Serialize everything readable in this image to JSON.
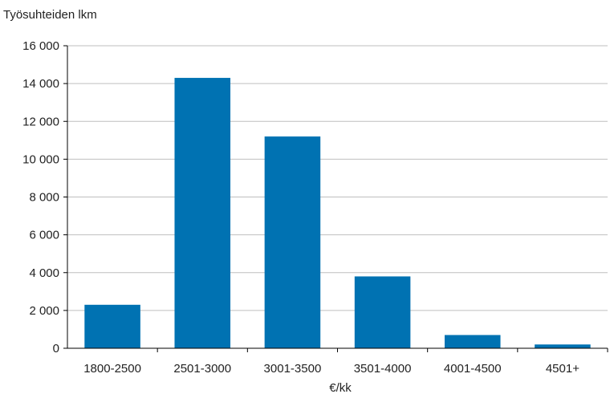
{
  "chart_data": {
    "type": "bar",
    "title": "",
    "ylabel": "Työsuhteiden lkm",
    "xlabel": "€/kk",
    "categories": [
      "1800-2500",
      "2501-3000",
      "3001-3500",
      "3501-4000",
      "4001-4500",
      "4501+"
    ],
    "values": [
      2300,
      14300,
      11200,
      3800,
      700,
      200
    ],
    "ylim": [
      0,
      16000
    ],
    "yticks": [
      0,
      2000,
      4000,
      6000,
      8000,
      10000,
      12000,
      14000,
      16000
    ],
    "ytick_labels": [
      "0",
      "2 000",
      "4 000",
      "6 000",
      "8 000",
      "10 000",
      "12 000",
      "14 000",
      "16 000"
    ],
    "grid": true,
    "colors": {
      "bar": "#0072b2",
      "grid": "#bfbfbf",
      "axis": "#000000"
    }
  }
}
